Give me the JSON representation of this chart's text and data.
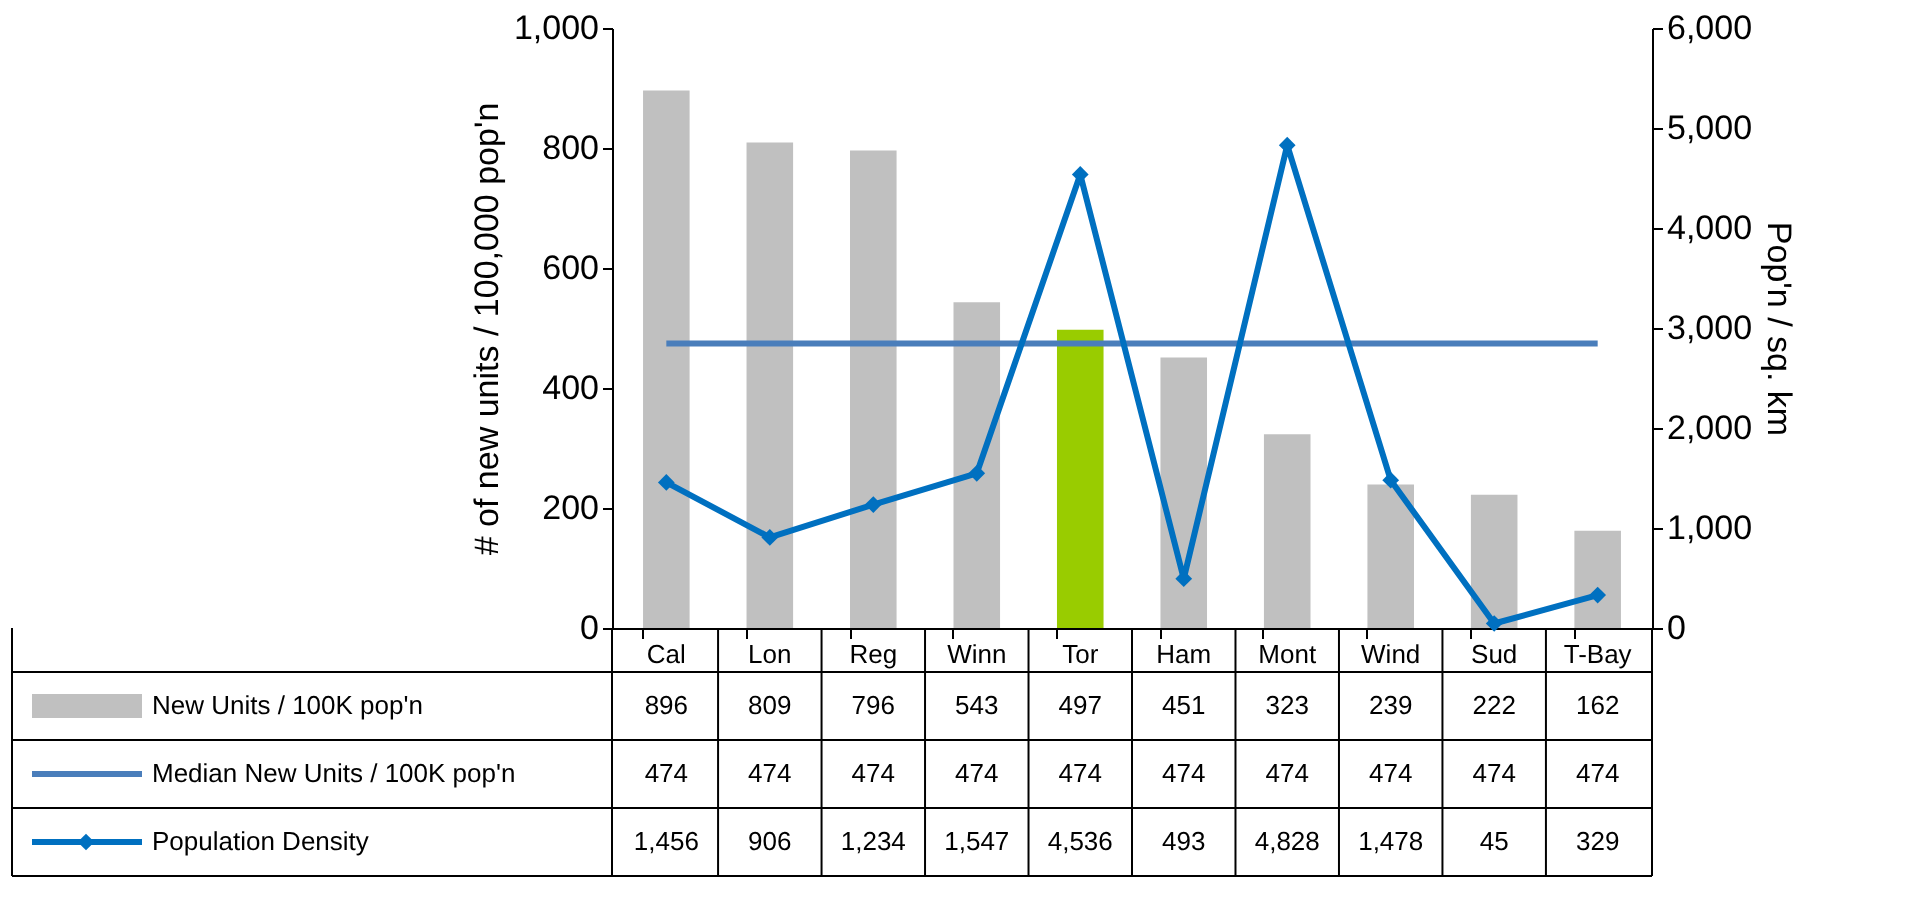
{
  "chart_data": {
    "type": "bar",
    "categories": [
      "Cal",
      "Lon",
      "Reg",
      "Winn",
      "Tor",
      "Ham",
      "Mont",
      "Wind",
      "Sud",
      "T-Bay"
    ],
    "ylabel": "# of new units / 100,000 pop'n",
    "y2label": "Pop'n / sq. km",
    "ylim": [
      0,
      1000
    ],
    "yticks": [
      0,
      200,
      400,
      600,
      800,
      {
        "value": 1000,
        "label": "1,000"
      }
    ],
    "y2lim": [
      0,
      6000
    ],
    "y2ticks": [
      0,
      {
        "value": 1000,
        "label": "1,000"
      },
      {
        "value": 2000,
        "label": "2,000"
      },
      {
        "value": 3000,
        "label": "3,000"
      },
      {
        "value": 4000,
        "label": "4,000"
      },
      {
        "value": 5000,
        "label": "5,000"
      },
      {
        "value": 6000,
        "label": "6,000"
      }
    ],
    "grid": false,
    "legend": "bottom",
    "series": [
      {
        "name": "New Units  / 100K pop'n",
        "value_labels": [
          "896",
          "809",
          "796",
          "543",
          "497",
          "451",
          "323",
          "239",
          "222",
          "162"
        ],
        "color": "#c0c0c0",
        "colors": [
          "#c0c0c0",
          "#c0c0c0",
          "#c0c0c0",
          "#c0c0c0",
          "#99cc00",
          "#c0c0c0",
          "#c0c0c0",
          "#c0c0c0",
          "#c0c0c0",
          "#c0c0c0"
        ],
        "values": [
          896,
          809,
          796,
          543,
          497,
          451,
          323,
          239,
          222,
          162
        ]
      },
      {
        "name": "Median New Units  / 100K pop'n",
        "type": "line",
        "color": "#4a7ebb",
        "marker": "none",
        "value_labels": [
          "474",
          "474",
          "474",
          "474",
          "474",
          "474",
          "474",
          "474",
          "474",
          "474"
        ],
        "values": [
          474,
          474,
          474,
          474,
          474,
          474,
          474,
          474,
          474,
          474
        ]
      },
      {
        "name": "Population Density",
        "type": "line",
        "axis": "y2",
        "color": "#0070c0",
        "marker": "diamond",
        "value_labels": [
          "1,456",
          "906",
          "1,234",
          "1,547",
          "4,536",
          "493",
          "4,828",
          "1,478",
          "45",
          "329"
        ],
        "values": [
          1456,
          906,
          1234,
          1547,
          4536,
          493,
          4828,
          1478,
          45,
          329
        ]
      }
    ]
  }
}
